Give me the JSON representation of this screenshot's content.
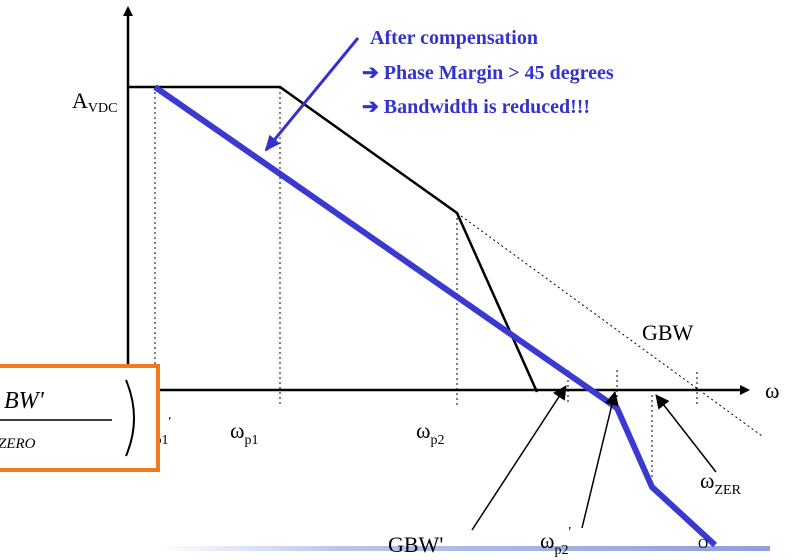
{
  "y_axis_label": {
    "base": "A",
    "sub": "VDC"
  },
  "x_axis_label": "ω",
  "annotation": {
    "title": "After compensation",
    "points": [
      "Phase Margin > 45 degrees",
      "Bandwidth is reduced!!!"
    ]
  },
  "labels": {
    "gbw": "GBW",
    "gbw_prime": "GBW'",
    "wp1_prime": {
      "base": "ω",
      "sub": "p1",
      "prime": "'"
    },
    "wp1": {
      "base": "ω",
      "sub": "p1"
    },
    "wp2": {
      "base": "ω",
      "sub": "p2"
    },
    "wp2_prime": {
      "base": "ω",
      "sub": "p2",
      "prime": "'"
    },
    "wzero": {
      "base": "ω",
      "sub": "ZER",
      "tail": "O"
    }
  },
  "formula": {
    "numerator": "BW'",
    "denominator": "ZERO"
  }
}
